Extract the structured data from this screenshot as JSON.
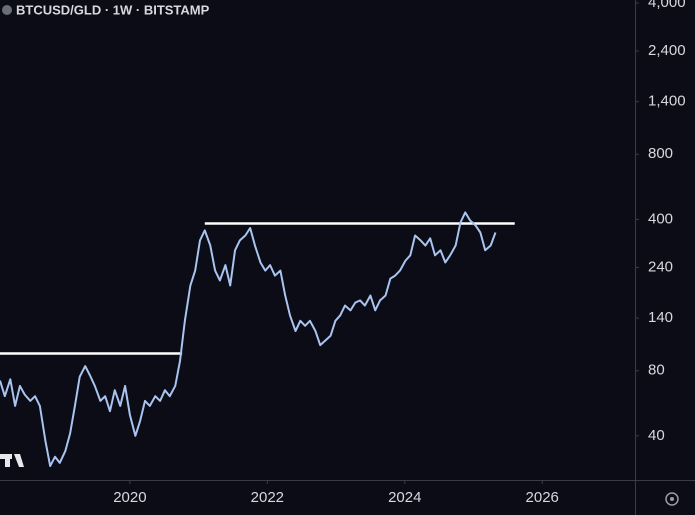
{
  "chart_data": {
    "type": "line",
    "title": "BTCUSD/GLD · 1W · BITSTAMP",
    "x": [
      2018.11,
      2018.18,
      2018.26,
      2018.33,
      2018.4,
      2018.47,
      2018.55,
      2018.62,
      2018.69,
      2018.77,
      2018.84,
      2018.91,
      2018.98,
      2019.06,
      2019.13,
      2019.2,
      2019.27,
      2019.35,
      2019.42,
      2019.49,
      2019.57,
      2019.64,
      2019.71,
      2019.78,
      2019.86,
      2019.93,
      2020.0,
      2020.08,
      2020.15,
      2020.22,
      2020.29,
      2020.37,
      2020.44,
      2020.51,
      2020.58,
      2020.66,
      2020.73,
      2020.8,
      2020.88,
      2020.95,
      2021.02,
      2021.09,
      2021.17,
      2021.24,
      2021.31,
      2021.39,
      2021.46,
      2021.53,
      2021.6,
      2021.68,
      2021.75,
      2021.82,
      2021.9,
      2021.97,
      2022.04,
      2022.11,
      2022.19,
      2022.26,
      2022.33,
      2022.41,
      2022.48,
      2022.55,
      2022.62,
      2022.7,
      2022.77,
      2022.84,
      2022.92,
      2022.99,
      2023.06,
      2023.13,
      2023.21,
      2023.28,
      2023.35,
      2023.42,
      2023.5,
      2023.57,
      2023.64,
      2023.72,
      2023.79,
      2023.86,
      2023.93,
      2024.01,
      2024.08,
      2024.15,
      2024.23,
      2024.3,
      2024.37,
      2024.44,
      2024.52,
      2024.59,
      2024.66,
      2024.74,
      2024.81,
      2024.88,
      2024.95,
      2025.03,
      2025.1,
      2025.17,
      2025.25,
      2025.32
    ],
    "values": [
      72,
      61,
      73,
      55,
      68,
      62,
      58,
      61,
      55,
      38,
      29,
      32,
      30,
      34,
      41,
      55,
      75,
      84,
      76,
      68,
      58,
      61,
      52,
      65,
      55,
      68,
      50,
      40,
      47,
      58,
      55,
      61,
      58,
      65,
      61,
      68,
      89,
      136,
      198,
      232,
      320,
      356,
      303,
      232,
      209,
      246,
      198,
      288,
      320,
      337,
      365,
      303,
      253,
      232,
      246,
      220,
      232,
      178,
      144,
      122,
      136,
      129,
      136,
      122,
      105,
      110,
      116,
      136,
      144,
      160,
      152,
      165,
      169,
      160,
      178,
      152,
      169,
      178,
      213,
      220,
      232,
      258,
      273,
      337,
      320,
      303,
      327,
      273,
      288,
      253,
      273,
      303,
      387,
      431,
      396,
      375,
      348,
      288,
      303,
      348
    ],
    "color": "#a9c4f0",
    "levels": [
      {
        "y": 96,
        "x": [
          2018.11,
          2020.76
        ]
      },
      {
        "y": 383,
        "x": [
          2021.09,
          2025.6
        ]
      }
    ],
    "level_color": "#ffffff",
    "xlim": [
      2018.11,
      2027.35
    ],
    "xticks": [
      2020,
      2022,
      2024,
      2026
    ],
    "ylim": [
      25,
      4130
    ],
    "log_scale": true,
    "grid": false,
    "yticks": [
      {
        "value": 4000,
        "label": "4,000"
      },
      {
        "value": 2400,
        "label": "2,400"
      },
      {
        "value": 1400,
        "label": "1,400"
      },
      800,
      400,
      240,
      140,
      80,
      40
    ]
  }
}
